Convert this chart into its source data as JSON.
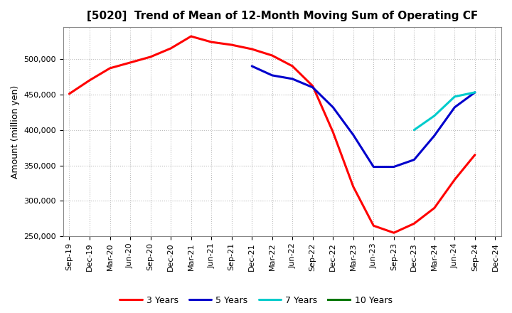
{
  "title": "[5020]  Trend of Mean of 12-Month Moving Sum of Operating CF",
  "ylabel": "Amount (million yen)",
  "ylim": [
    250000,
    545000
  ],
  "yticks": [
    250000,
    300000,
    350000,
    400000,
    450000,
    500000
  ],
  "background_color": "#ffffff",
  "grid_color": "#bbbbbb",
  "x_labels": [
    "Sep-19",
    "Dec-19",
    "Mar-20",
    "Jun-20",
    "Sep-20",
    "Dec-20",
    "Mar-21",
    "Jun-21",
    "Sep-21",
    "Dec-21",
    "Mar-22",
    "Jun-22",
    "Sep-22",
    "Dec-22",
    "Mar-23",
    "Jun-23",
    "Sep-23",
    "Dec-23",
    "Mar-24",
    "Jun-24",
    "Sep-24",
    "Dec-24"
  ],
  "series": {
    "3 Years": {
      "color": "#ff0000",
      "data": [
        451000,
        470000,
        487000,
        495000,
        503000,
        515000,
        532000,
        524000,
        520000,
        514000,
        505000,
        490000,
        462000,
        397000,
        320000,
        265000,
        255000,
        268000,
        290000,
        330000,
        365000,
        null
      ]
    },
    "5 Years": {
      "color": "#0000cc",
      "data": [
        null,
        null,
        null,
        null,
        null,
        null,
        null,
        null,
        null,
        490000,
        477000,
        472000,
        460000,
        432000,
        393000,
        348000,
        348000,
        358000,
        392000,
        432000,
        453000,
        null
      ]
    },
    "7 Years": {
      "color": "#00cccc",
      "data": [
        null,
        null,
        null,
        null,
        null,
        null,
        null,
        null,
        null,
        null,
        null,
        null,
        null,
        null,
        null,
        null,
        null,
        400000,
        420000,
        447000,
        453000,
        null
      ]
    },
    "10 Years": {
      "color": "#007700",
      "data": [
        null,
        null,
        null,
        null,
        null,
        null,
        null,
        null,
        null,
        null,
        null,
        null,
        null,
        null,
        null,
        null,
        null,
        null,
        null,
        null,
        null,
        null
      ]
    }
  },
  "legend_order": [
    "3 Years",
    "5 Years",
    "7 Years",
    "10 Years"
  ]
}
